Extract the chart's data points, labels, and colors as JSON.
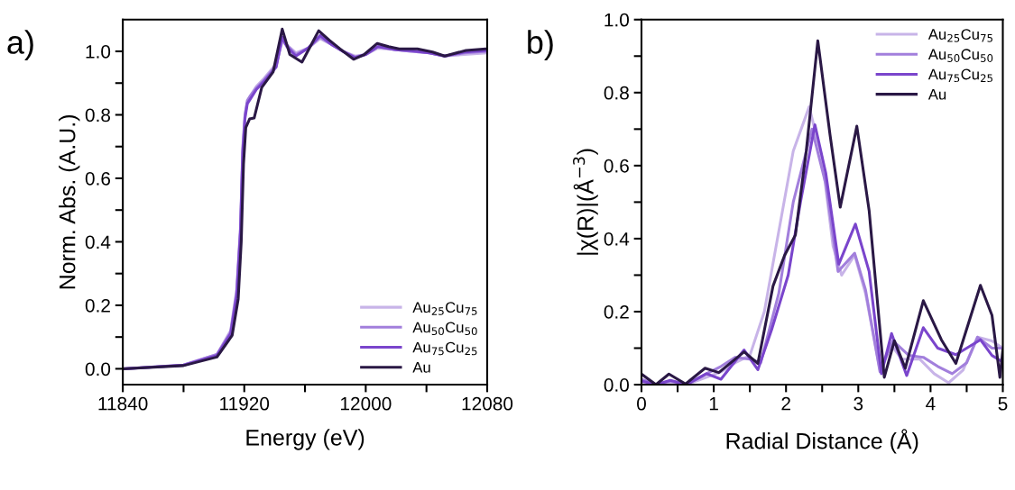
{
  "chart_data": [
    {
      "type": "line",
      "annotations": [
        "a)"
      ],
      "xlabel": "Energy (eV)",
      "ylabel": "Norm. Abs. (A.U.)",
      "xlim": [
        11840,
        12080
      ],
      "ylim": [
        -0.05,
        1.1
      ],
      "xticks": [
        11840,
        {
          "value": 11880,
          "label": null
        },
        11920,
        {
          "value": 11960,
          "label": null
        },
        12000,
        {
          "value": 12040,
          "label": null
        },
        12080
      ],
      "yticks": [
        {
          "value": 0,
          "label": "0.0"
        },
        {
          "value": 0.1,
          "label": null
        },
        0.2,
        {
          "value": 0.3,
          "label": null
        },
        0.4,
        {
          "value": 0.5,
          "label": null
        },
        0.6,
        {
          "value": 0.7,
          "label": null
        },
        0.8,
        {
          "value": 0.9,
          "label": null
        },
        {
          "value": 1,
          "label": "1.0"
        }
      ],
      "legend": "lower right",
      "grid": false,
      "series": [
        {
          "name": "Au$_{25}$Cu$_{75}$",
          "color": "#c8b4e8",
          "x": [
            11840,
            11880,
            11902,
            11911,
            11915,
            11917.5,
            11919,
            11920.5,
            11922,
            11924,
            11928,
            11933,
            11941,
            11945,
            11948,
            11954,
            11962,
            11970,
            11978,
            11985,
            11993,
            12000,
            12008,
            12020,
            12030,
            12042,
            12052,
            12065,
            12080
          ],
          "values": [
            0.0,
            0.012,
            0.045,
            0.12,
            0.25,
            0.45,
            0.7,
            0.8,
            0.84,
            0.86,
            0.89,
            0.915,
            0.96,
            1.03,
            1.02,
            0.995,
            1.01,
            1.04,
            1.02,
            1.0,
            0.985,
            0.99,
            1.01,
            1.005,
            1.0,
            0.995,
            0.985,
            0.99,
            0.995
          ]
        },
        {
          "name": "Au$_{50}$Cu$_{50}$",
          "color": "#a27fdc",
          "x": [
            11840,
            11880,
            11902,
            11911,
            11915,
            11917.5,
            11919,
            11920.5,
            11922,
            11924,
            11928,
            11933,
            11941,
            11945,
            11948,
            11954,
            11962,
            11970,
            11978,
            11985,
            11993,
            12000,
            12008,
            12020,
            12030,
            12042,
            12052,
            12065,
            12080
          ],
          "values": [
            0.0,
            0.012,
            0.045,
            0.115,
            0.24,
            0.44,
            0.69,
            0.8,
            0.845,
            0.86,
            0.885,
            0.91,
            0.955,
            1.04,
            1.02,
            0.99,
            1.01,
            1.045,
            1.02,
            1.0,
            0.982,
            0.99,
            1.015,
            1.005,
            1.0,
            0.995,
            0.985,
            0.995,
            1.0
          ]
        },
        {
          "name": "Au$_{75}$Cu$_{25}$",
          "color": "#7a45cc",
          "x": [
            11840,
            11880,
            11902,
            11911,
            11915,
            11917.5,
            11919,
            11920.5,
            11922,
            11924,
            11928,
            11933,
            11941,
            11945,
            11948,
            11954,
            11962,
            11970,
            11978,
            11985,
            11993,
            12000,
            12008,
            12020,
            12030,
            12042,
            12052,
            12065,
            12080
          ],
          "values": [
            0.0,
            0.011,
            0.042,
            0.11,
            0.23,
            0.43,
            0.68,
            0.79,
            0.835,
            0.85,
            0.88,
            0.905,
            0.95,
            1.045,
            1.015,
            0.985,
            1.01,
            1.05,
            1.02,
            1.0,
            0.98,
            0.99,
            1.015,
            1.005,
            1.002,
            0.995,
            0.985,
            0.998,
            1.003
          ]
        },
        {
          "name": "Au",
          "color": "#2a1845",
          "x": [
            11840,
            11880,
            11902,
            11912,
            11916,
            11918,
            11919.5,
            11921,
            11923.5,
            11926.5,
            11931.5,
            11939,
            11945,
            11950,
            11958,
            11964,
            11969,
            11976,
            11983,
            11992,
            11999,
            12007.6,
            12015,
            12022,
            12034,
            12044,
            12052,
            12066,
            12079
          ],
          "values": [
            0.0,
            0.01,
            0.037,
            0.105,
            0.22,
            0.4,
            0.645,
            0.76,
            0.787,
            0.79,
            0.886,
            0.935,
            1.07,
            0.99,
            0.966,
            1.02,
            1.065,
            1.035,
            1.008,
            0.975,
            0.99,
            1.025,
            1.015,
            1.008,
            1.008,
            0.998,
            0.985,
            1.003,
            1.008
          ]
        }
      ]
    },
    {
      "type": "line",
      "annotations": [
        "b)"
      ],
      "xlabel": "Radial Distance (Å)",
      "ylabel": "|χ(R)|(Å$^{−3}$)",
      "xlim": [
        0,
        5
      ],
      "ylim": [
        0,
        1.0
      ],
      "xticks": [
        0,
        {
          "value": 0.5,
          "label": null
        },
        1,
        {
          "value": 1.5,
          "label": null
        },
        2,
        {
          "value": 2.5,
          "label": null
        },
        3,
        {
          "value": 3.5,
          "label": null
        },
        4,
        {
          "value": 4.5,
          "label": null
        },
        5
      ],
      "yticks": [
        {
          "value": 0,
          "label": "0.0"
        },
        {
          "value": 0.1,
          "label": null
        },
        0.2,
        {
          "value": 0.3,
          "label": null
        },
        0.4,
        {
          "value": 0.5,
          "label": null
        },
        0.6,
        {
          "value": 0.7,
          "label": null
        },
        0.8,
        {
          "value": 0.9,
          "label": null
        },
        {
          "value": 1,
          "label": "1.0"
        }
      ],
      "legend": "upper right",
      "grid": false,
      "series": [
        {
          "name": "Au$_{25}$Cu$_{75}$",
          "color": "#c8b4e8",
          "x": [
            0,
            0.2,
            0.4,
            0.62,
            0.9,
            1.1,
            1.3,
            1.5,
            1.7,
            1.9,
            2.1,
            2.32,
            2.5,
            2.65,
            2.77,
            2.95,
            3.1,
            3.3,
            3.45,
            3.6,
            3.85,
            4.05,
            4.25,
            4.45,
            4.65,
            4.85,
            5
          ],
          "values": [
            0.005,
            0.0,
            0.005,
            0.0,
            0.02,
            0.035,
            0.06,
            0.08,
            0.2,
            0.42,
            0.64,
            0.761,
            0.62,
            0.38,
            0.3,
            0.355,
            0.25,
            0.04,
            0.11,
            0.07,
            0.07,
            0.03,
            0.005,
            0.04,
            0.13,
            0.12,
            0.1
          ]
        },
        {
          "name": "Au$_{50}$Cu$_{50}$",
          "color": "#a27fdc",
          "x": [
            0,
            0.2,
            0.4,
            0.62,
            0.9,
            1.1,
            1.3,
            1.5,
            1.65,
            1.9,
            2.1,
            2.36,
            2.55,
            2.72,
            2.95,
            3.1,
            3.3,
            3.48,
            3.7,
            3.9,
            4.1,
            4.3,
            4.5,
            4.65,
            4.85,
            5
          ],
          "values": [
            0.015,
            0.0,
            0.01,
            0.0,
            0.03,
            0.05,
            0.075,
            0.07,
            0.06,
            0.25,
            0.5,
            0.7,
            0.55,
            0.31,
            0.36,
            0.26,
            0.035,
            0.12,
            0.08,
            0.075,
            0.05,
            0.03,
            0.06,
            0.13,
            0.1,
            0.1
          ]
        },
        {
          "name": "Au$_{75}$Cu$_{25}$",
          "color": "#7a45cc",
          "x": [
            0,
            0.2,
            0.4,
            0.62,
            0.9,
            1.1,
            1.42,
            1.61,
            1.8,
            2.03,
            2.2,
            2.4,
            2.55,
            2.73,
            2.96,
            3.15,
            3.32,
            3.46,
            3.67,
            3.9,
            4.1,
            4.35,
            4.5,
            4.69,
            4.85,
            5
          ],
          "values": [
            0.01,
            0.0,
            0.012,
            0.0,
            0.03,
            0.015,
            0.095,
            0.041,
            0.15,
            0.3,
            0.5,
            0.712,
            0.58,
            0.33,
            0.44,
            0.31,
            0.03,
            0.14,
            0.025,
            0.156,
            0.1,
            0.082,
            0.1,
            0.123,
            0.08,
            0.062
          ]
        },
        {
          "name": "Au",
          "color": "#2a1845",
          "x": [
            0,
            0.2,
            0.38,
            0.61,
            0.88,
            1.07,
            1.42,
            1.61,
            1.82,
            1.98,
            2.13,
            2.28,
            2.44,
            2.61,
            2.75,
            2.98,
            3.15,
            3.36,
            3.5,
            3.65,
            3.9,
            4.15,
            4.35,
            4.69,
            4.85,
            4.96,
            5
          ],
          "values": [
            0.029,
            0.0,
            0.029,
            0.002,
            0.045,
            0.033,
            0.09,
            0.058,
            0.27,
            0.354,
            0.41,
            0.64,
            0.942,
            0.683,
            0.486,
            0.708,
            0.477,
            0.02,
            0.12,
            0.045,
            0.23,
            0.123,
            0.058,
            0.272,
            0.19,
            0.02,
            0.095
          ]
        }
      ]
    }
  ]
}
